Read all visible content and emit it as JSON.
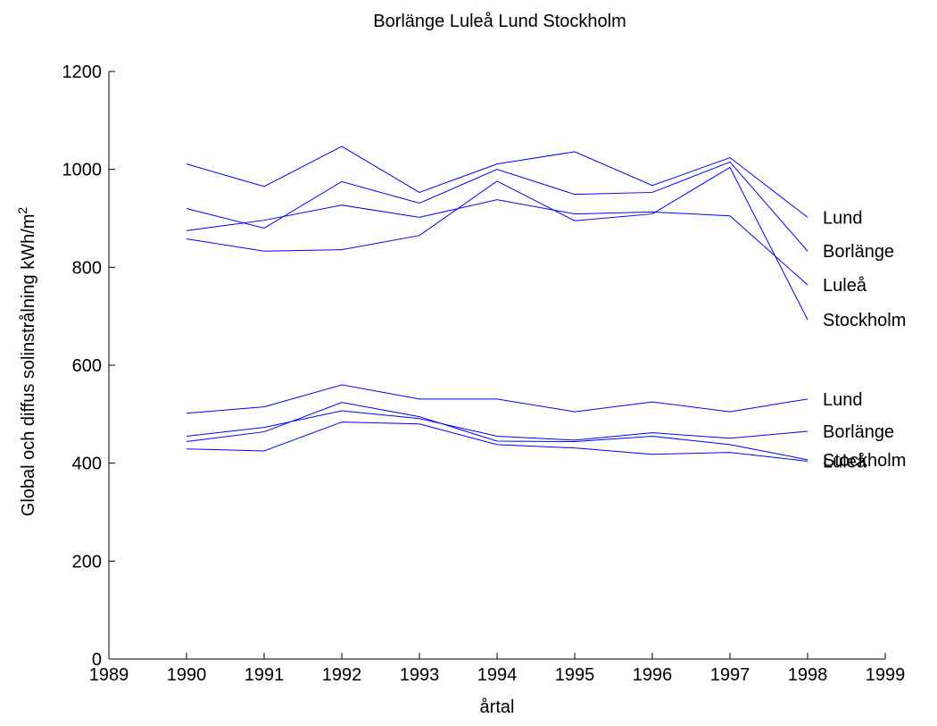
{
  "chart_data": {
    "type": "line",
    "title": "Borlänge  Luleå  Lund  Stockholm",
    "x_label": "årtal",
    "y_label": "Global och diffus solinstrålning  kWh/m",
    "y_label_sup": "2",
    "x": [
      1990,
      1991,
      1992,
      1993,
      1994,
      1995,
      1996,
      1997,
      1998
    ],
    "xlim": [
      1989,
      1999
    ],
    "xticks": [
      1989,
      1990,
      1991,
      1992,
      1993,
      1994,
      1995,
      1996,
      1997,
      1998,
      1999
    ],
    "ylim": [
      0,
      1200
    ],
    "yticks": [
      0,
      200,
      400,
      600,
      800,
      1000,
      1200
    ],
    "grid": false,
    "series": [
      {
        "name": "Lund",
        "color": "#0000ff",
        "values": [
          1011,
          965,
          1047,
          953,
          1011,
          1036,
          967,
          1024,
          902
        ]
      },
      {
        "name": "Borlänge",
        "color": "#0000ff",
        "values": [
          920,
          880,
          975,
          931,
          1000,
          949,
          953,
          1015,
          833
        ]
      },
      {
        "name": "Luleå",
        "color": "#0000ff",
        "values": [
          875,
          896,
          927,
          902,
          938,
          909,
          913,
          905,
          764
        ]
      },
      {
        "name": "Stockholm",
        "color": "#0000ff",
        "values": [
          858,
          833,
          836,
          865,
          976,
          895,
          909,
          1004,
          693
        ]
      },
      {
        "name": "Lund",
        "color": "#0000ff",
        "values": [
          502,
          515,
          560,
          531,
          531,
          505,
          525,
          505,
          531
        ]
      },
      {
        "name": "Borlänge",
        "color": "#0000ff",
        "values": [
          455,
          473,
          507,
          491,
          455,
          447,
          462,
          451,
          465
        ]
      },
      {
        "name": "Stockholm",
        "color": "#0000ff",
        "values": [
          444,
          464,
          524,
          495,
          445,
          444,
          455,
          438,
          407
        ]
      },
      {
        "name": "Luleå",
        "color": "#0000ff",
        "values": [
          429,
          425,
          484,
          480,
          438,
          431,
          418,
          422,
          404
        ]
      }
    ]
  }
}
